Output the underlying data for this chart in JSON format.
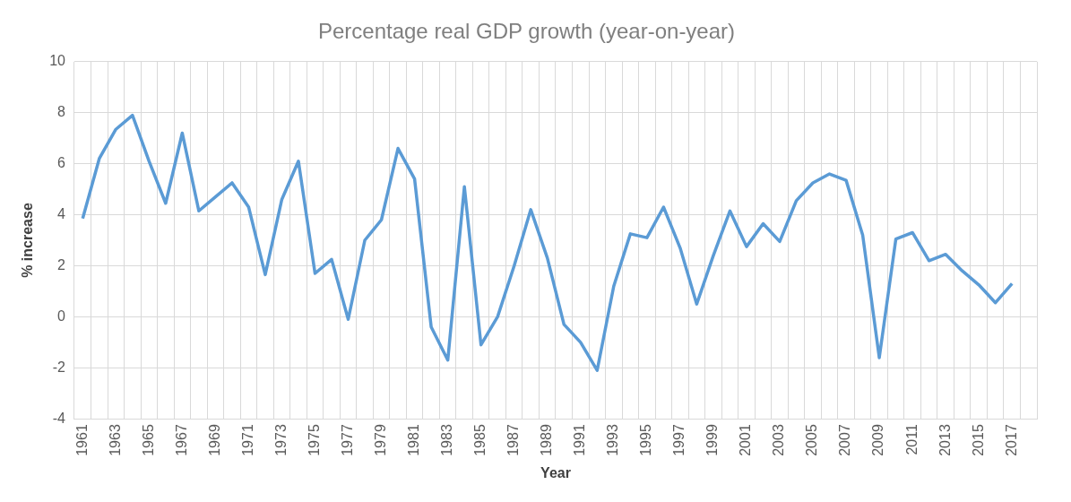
{
  "chart_data": {
    "type": "line",
    "title": "Percentage real GDP growth (year-on-year)",
    "xlabel": "Year",
    "ylabel": "% increase",
    "categories": [
      "1961",
      null,
      "1963",
      null,
      "1965",
      null,
      "1967",
      null,
      "1969",
      null,
      "1971",
      null,
      "1973",
      null,
      "1975",
      null,
      "1977",
      null,
      "1979",
      null,
      "1981",
      null,
      "1983",
      null,
      "1985",
      null,
      "1987",
      null,
      "1989",
      null,
      "1991",
      null,
      "1993",
      null,
      "1995",
      null,
      "1997",
      null,
      "1999",
      null,
      "2001",
      null,
      "2003",
      null,
      "2005",
      null,
      "2007",
      null,
      "2009",
      null,
      "2011",
      null,
      "2013",
      null,
      "2015",
      null,
      "2017",
      null
    ],
    "series": [
      {
        "color": "#5b9bd5",
        "values": [
          3.85,
          6.2,
          7.35,
          7.9,
          6.1,
          4.45,
          7.2,
          4.15,
          4.7,
          5.25,
          4.3,
          1.65,
          4.6,
          6.1,
          1.7,
          2.25,
          -0.1,
          3.0,
          3.8,
          6.6,
          5.4,
          -0.4,
          -1.7,
          5.1,
          -1.1,
          0.0,
          2.0,
          4.2,
          2.3,
          -0.3,
          -1.0,
          -2.1,
          1.2,
          3.25,
          3.1,
          4.3,
          2.7,
          0.5,
          2.4,
          4.15,
          2.75,
          3.65,
          2.95,
          4.55,
          5.25,
          5.6,
          5.35,
          3.2,
          -1.6,
          3.05,
          3.3,
          2.2,
          2.45,
          1.8,
          1.25,
          0.55,
          1.3,
          null
        ]
      }
    ],
    "ylim": [
      -4,
      10
    ],
    "yticks": [
      -4,
      -2,
      0,
      2,
      4,
      6,
      8,
      10
    ],
    "grid": true,
    "legend": false,
    "marker": "none",
    "line_style": "solid"
  }
}
